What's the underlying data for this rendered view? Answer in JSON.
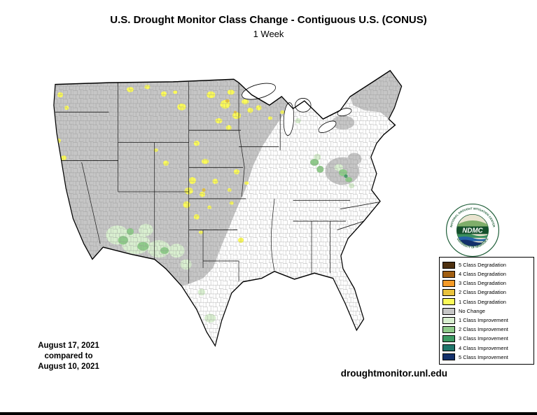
{
  "header": {
    "title": "U.S. Drought Monitor Class Change - Contiguous U.S. (CONUS)",
    "subtitle": "1 Week"
  },
  "annotations": {
    "date_line1": "August 17, 2021",
    "date_line2": "compared to",
    "date_line3": "August 10, 2021",
    "website": "droughtmonitor.unl.edu"
  },
  "logo": {
    "acronym": "NDMC",
    "ring_top": "NATIONAL DROUGHT MITIGATION CENTER",
    "ring_bottom": "UNIVERSITY OF NEBRASKA"
  },
  "legend": {
    "items": [
      {
        "key": "deg5",
        "label": "5 Class Degradation",
        "color": "#4e3110"
      },
      {
        "key": "deg4",
        "label": "4 Class Degradation",
        "color": "#a05e12"
      },
      {
        "key": "deg3",
        "label": "3 Class Degradation",
        "color": "#f59b28"
      },
      {
        "key": "deg2",
        "label": "2 Class Degradation",
        "color": "#e9c33d"
      },
      {
        "key": "deg1",
        "label": "1 Class Degradation",
        "color": "#fbfa59"
      },
      {
        "key": "nochange",
        "label": "No Change",
        "color": "#c6c6c6"
      },
      {
        "key": "imp1",
        "label": "1 Class Improvement",
        "color": "#d9efd0"
      },
      {
        "key": "imp2",
        "label": "2 Class Improvement",
        "color": "#8fcb8a"
      },
      {
        "key": "imp3",
        "label": "3 Class Improvement",
        "color": "#3d9b63"
      },
      {
        "key": "imp4",
        "label": "4 Class Improvement",
        "color": "#20766b"
      },
      {
        "key": "imp5",
        "label": "5 Class Improvement",
        "color": "#14306b"
      }
    ]
  }
}
